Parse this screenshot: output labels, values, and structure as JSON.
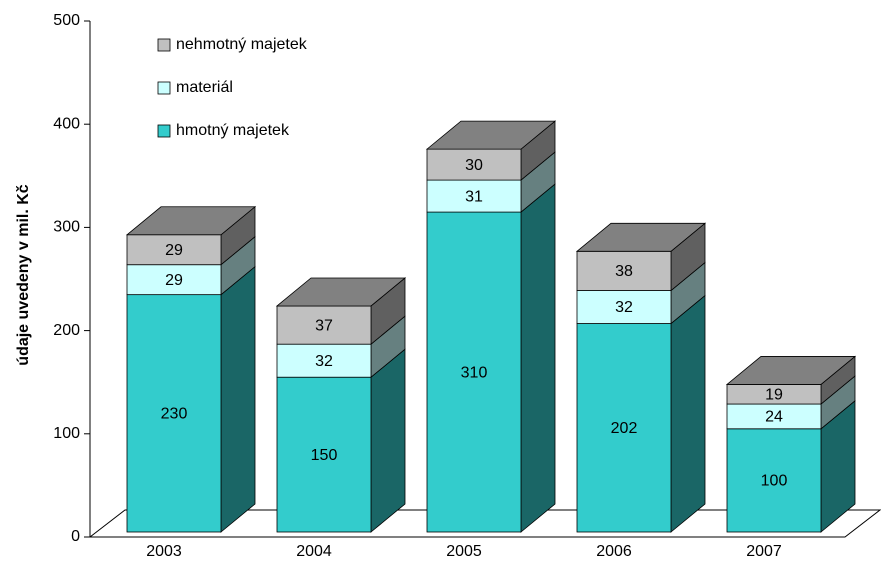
{
  "chart_data": {
    "type": "bar3d_stacked",
    "y_label": "údaje uvedeny v mil. Kč",
    "categories": [
      "2003",
      "2004",
      "2005",
      "2006",
      "2007"
    ],
    "series": [
      {
        "name": "hmotný majetek",
        "color": "#33cccc",
        "values": [
          230,
          150,
          310,
          202,
          100
        ]
      },
      {
        "name": "materiál",
        "color": "#ccffff",
        "values": [
          29,
          32,
          31,
          32,
          24
        ]
      },
      {
        "name": "nehmotný majetek",
        "color": "#c0c0c0",
        "values": [
          29,
          37,
          30,
          38,
          19
        ]
      }
    ],
    "ylim": [
      0,
      500
    ],
    "yticks": [
      0,
      100,
      200,
      300,
      400,
      500
    ],
    "legend": "top-left"
  }
}
